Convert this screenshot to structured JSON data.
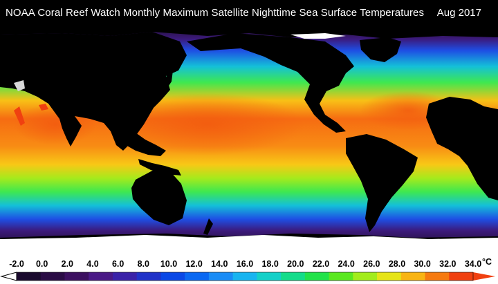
{
  "title": "NOAA Coral Reef Watch Monthly Maximum Satellite Nighttime Sea Surface Temperatures",
  "date": "Aug 2017",
  "legend": {
    "unit": "°C",
    "ticks": [
      "-2.0",
      "0.0",
      "2.0",
      "4.0",
      "6.0",
      "8.0",
      "10.0",
      "12.0",
      "14.0",
      "16.0",
      "18.0",
      "20.0",
      "22.0",
      "24.0",
      "26.0",
      "28.0",
      "30.0",
      "32.0",
      "34.0"
    ],
    "colors": [
      "#1a0a2e",
      "#2a0c45",
      "#3c1060",
      "#4a1a86",
      "#3a22a8",
      "#2032c8",
      "#0a48e6",
      "#0a68f2",
      "#1a8cf6",
      "#18b4f0",
      "#14d0c8",
      "#14dc8a",
      "#22e24a",
      "#5ae820",
      "#a2ec1c",
      "#e6e418",
      "#f8b414",
      "#f67a10",
      "#f04010"
    ]
  },
  "colors": {
    "land": "#000000",
    "ice": "#ffffff",
    "tropical": "#f66c12",
    "subtropical": "#f8c016",
    "temperate": "#3ee850",
    "cool": "#14c0d8",
    "cold": "#1e4ee4",
    "polar": "#3c1a7c",
    "frozen": "#24103a"
  }
}
